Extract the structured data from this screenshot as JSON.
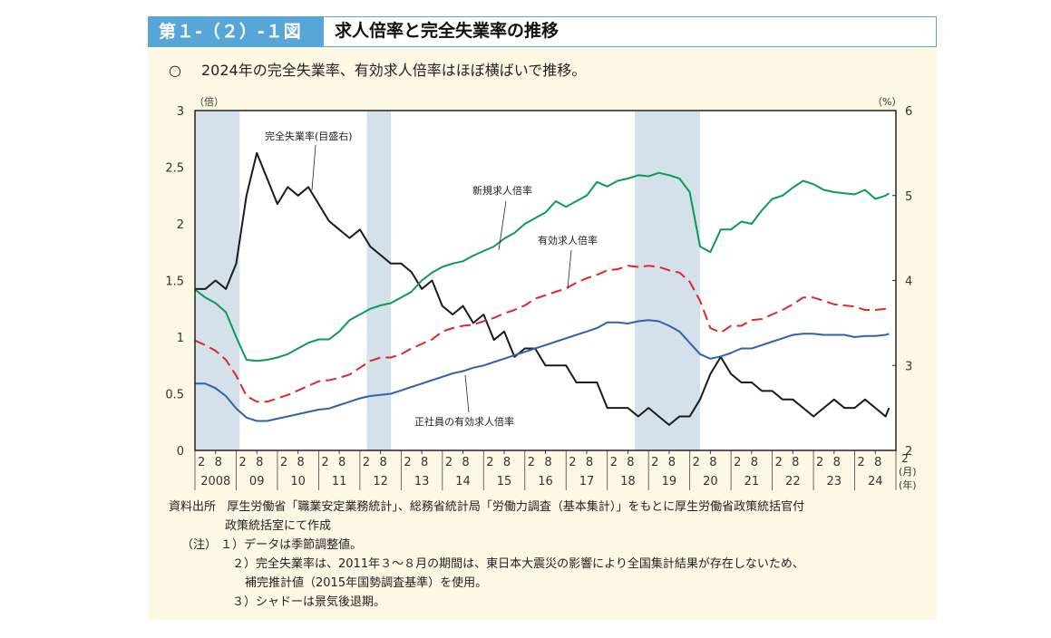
{
  "header": {
    "figure_number": "第１-（２）-１図",
    "title": "求人倍率と完全失業率の推移"
  },
  "summary": {
    "bullet": "○",
    "text": "2024年の完全失業率、有効求人倍率はほぼ横ばいで推移。"
  },
  "notes": {
    "source_label": "資料出所",
    "source_text": "厚生労働省「職業安定業務統計」、総務省統計局「労働力調査（基本集計）」をもとに厚生労働省政策統括官付",
    "source_text_2": "政策統括室にて作成",
    "note_label": "（注）",
    "note_1": "１）データは季節調整値。",
    "note_2": "２）完全失業率は、2011年３～８月の期間は、東日本大震災の影響により全国集計結果が存在しないため、",
    "note_2b": "補完推計値（2015年国勢調査基準）を使用。",
    "note_3": "３）シャドーは景気後退期。"
  },
  "chart_data": {
    "type": "line",
    "title": "",
    "y_left_unit": "（倍）",
    "y_right_unit": "（%）",
    "x_month_unit": "(月)",
    "x_year_unit": "(年)",
    "ylim_left": [
      0,
      3
    ],
    "ylim_right": [
      2,
      6
    ],
    "yticks_left": [
      "0",
      "0.5",
      "1",
      "1.5",
      "2",
      "2.5",
      "3"
    ],
    "yticks_right": [
      "2",
      "3",
      "4",
      "5",
      "6"
    ],
    "month_ticks": [
      "2",
      "8"
    ],
    "month_end_label": "2",
    "year_labels": [
      "2008",
      "09",
      "10",
      "11",
      "12",
      "13",
      "14",
      "15",
      "16",
      "17",
      "18",
      "19",
      "20",
      "21",
      "22",
      "23",
      "24"
    ],
    "grid": false,
    "recessions": [
      [
        "2008-02",
        "2009-03"
      ],
      [
        "2012-04",
        "2012-11"
      ],
      [
        "2018-10",
        "2020-05"
      ]
    ],
    "x": [
      "2008-02",
      "2008-05",
      "2008-08",
      "2008-11",
      "2009-02",
      "2009-05",
      "2009-08",
      "2009-11",
      "2010-02",
      "2010-05",
      "2010-08",
      "2010-11",
      "2011-02",
      "2011-05",
      "2011-08",
      "2011-11",
      "2012-02",
      "2012-05",
      "2012-08",
      "2012-11",
      "2013-02",
      "2013-05",
      "2013-08",
      "2013-11",
      "2014-02",
      "2014-05",
      "2014-08",
      "2014-11",
      "2015-02",
      "2015-05",
      "2015-08",
      "2015-11",
      "2016-02",
      "2016-05",
      "2016-08",
      "2016-11",
      "2017-02",
      "2017-05",
      "2017-08",
      "2017-11",
      "2018-02",
      "2018-05",
      "2018-08",
      "2018-11",
      "2019-02",
      "2019-05",
      "2019-08",
      "2019-11",
      "2020-02",
      "2020-05",
      "2020-08",
      "2020-11",
      "2021-02",
      "2021-05",
      "2021-08",
      "2021-11",
      "2022-02",
      "2022-05",
      "2022-08",
      "2022-11",
      "2023-02",
      "2023-05",
      "2023-08",
      "2023-11",
      "2024-02",
      "2024-05",
      "2024-08",
      "2024-11",
      "2024-12"
    ],
    "series": [
      {
        "name": "完全失業率(目盛右)",
        "axis": "right",
        "color": "#1a1a1a",
        "dash": false,
        "values": [
          3.9,
          3.9,
          4.0,
          3.9,
          4.2,
          5.0,
          5.5,
          5.2,
          4.9,
          5.1,
          5.0,
          5.1,
          4.9,
          4.7,
          4.6,
          4.5,
          4.6,
          4.4,
          4.3,
          4.2,
          4.2,
          4.1,
          3.9,
          4.0,
          3.7,
          3.6,
          3.7,
          3.5,
          3.6,
          3.3,
          3.4,
          3.1,
          3.2,
          3.2,
          3.0,
          3.0,
          3.0,
          2.8,
          2.8,
          2.8,
          2.5,
          2.5,
          2.5,
          2.4,
          2.5,
          2.4,
          2.3,
          2.4,
          2.4,
          2.6,
          2.9,
          3.1,
          2.9,
          2.8,
          2.8,
          2.7,
          2.7,
          2.6,
          2.6,
          2.5,
          2.4,
          2.5,
          2.6,
          2.5,
          2.5,
          2.6,
          2.5,
          2.4,
          2.5
        ]
      },
      {
        "name": "新規求人倍率",
        "axis": "left",
        "color": "#0a9a5a",
        "dash": false,
        "values": [
          1.42,
          1.35,
          1.3,
          1.22,
          1.0,
          0.8,
          0.79,
          0.8,
          0.82,
          0.85,
          0.9,
          0.95,
          0.98,
          0.98,
          1.05,
          1.15,
          1.2,
          1.25,
          1.28,
          1.3,
          1.35,
          1.4,
          1.5,
          1.57,
          1.62,
          1.65,
          1.67,
          1.72,
          1.76,
          1.8,
          1.87,
          1.92,
          2.0,
          2.05,
          2.1,
          2.2,
          2.15,
          2.2,
          2.25,
          2.37,
          2.33,
          2.38,
          2.4,
          2.43,
          2.42,
          2.45,
          2.43,
          2.4,
          2.28,
          1.8,
          1.75,
          1.95,
          1.95,
          2.02,
          2.0,
          2.12,
          2.22,
          2.25,
          2.32,
          2.38,
          2.35,
          2.3,
          2.28,
          2.27,
          2.26,
          2.3,
          2.22,
          2.25,
          2.27
        ]
      },
      {
        "name": "有効求人倍率",
        "axis": "left",
        "color": "#e0262b",
        "dash": true,
        "values": [
          0.97,
          0.93,
          0.88,
          0.8,
          0.66,
          0.48,
          0.43,
          0.43,
          0.46,
          0.49,
          0.53,
          0.57,
          0.61,
          0.62,
          0.64,
          0.67,
          0.73,
          0.79,
          0.82,
          0.82,
          0.85,
          0.9,
          0.94,
          0.98,
          1.05,
          1.08,
          1.1,
          1.11,
          1.14,
          1.17,
          1.21,
          1.24,
          1.28,
          1.34,
          1.37,
          1.4,
          1.43,
          1.48,
          1.52,
          1.55,
          1.59,
          1.6,
          1.63,
          1.62,
          1.63,
          1.62,
          1.59,
          1.57,
          1.49,
          1.32,
          1.08,
          1.04,
          1.1,
          1.1,
          1.15,
          1.16,
          1.2,
          1.24,
          1.29,
          1.35,
          1.35,
          1.32,
          1.29,
          1.28,
          1.27,
          1.24,
          1.24,
          1.25,
          1.25
        ]
      },
      {
        "name": "正社員の有効求人倍率",
        "axis": "left",
        "color": "#2f62ae",
        "dash": false,
        "values": [
          0.59,
          0.59,
          0.55,
          0.48,
          0.37,
          0.29,
          0.26,
          0.26,
          0.28,
          0.3,
          0.32,
          0.34,
          0.36,
          0.37,
          0.4,
          0.43,
          0.46,
          0.48,
          0.49,
          0.5,
          0.53,
          0.56,
          0.59,
          0.62,
          0.65,
          0.68,
          0.7,
          0.73,
          0.75,
          0.78,
          0.81,
          0.84,
          0.87,
          0.9,
          0.93,
          0.96,
          0.99,
          1.02,
          1.05,
          1.08,
          1.13,
          1.13,
          1.12,
          1.14,
          1.15,
          1.14,
          1.1,
          1.05,
          0.95,
          0.85,
          0.81,
          0.83,
          0.86,
          0.9,
          0.9,
          0.93,
          0.96,
          0.99,
          1.02,
          1.03,
          1.03,
          1.02,
          1.02,
          1.02,
          1.0,
          1.01,
          1.01,
          1.02,
          1.03
        ]
      }
    ]
  }
}
